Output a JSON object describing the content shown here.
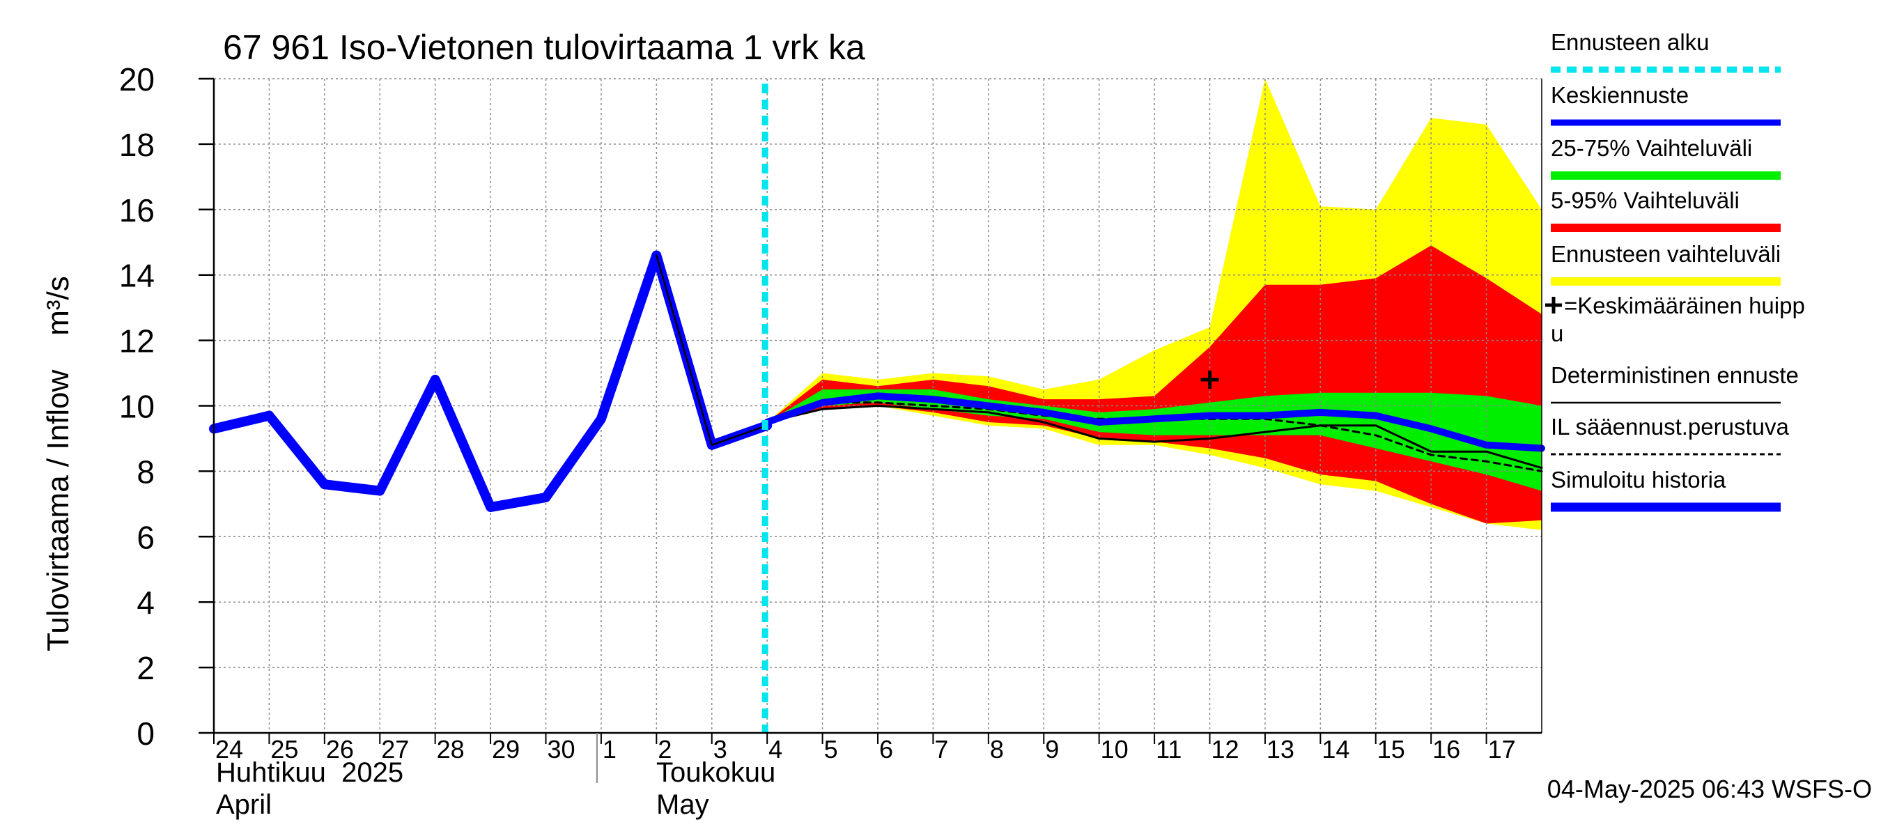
{
  "chart_data": {
    "type": "area",
    "title": "67 961 Iso-Vietonen tulovirtaama 1 vrk ka",
    "ylabel": "Tulovirtaama / Inflow    m³/s",
    "ylim": [
      0,
      20
    ],
    "yticks": [
      0,
      2,
      4,
      6,
      8,
      10,
      12,
      14,
      16,
      18,
      20
    ],
    "xlim": [
      0,
      24
    ],
    "day_labels": [
      "24",
      "25",
      "26",
      "27",
      "28",
      "29",
      "30",
      "1",
      "2",
      "3",
      "4",
      "5",
      "6",
      "7",
      "8",
      "9",
      "10",
      "11",
      "12",
      "13",
      "14",
      "15",
      "16",
      "17"
    ],
    "month_labels": {
      "april_fi": "Huhtikuu  2025",
      "april_en": "April",
      "may_fi": "Toukokuu",
      "may_en": "May"
    },
    "month_separator_x": 7,
    "forecast_start_x": 10,
    "footer": "04-May-2025 06:43 WSFS-O",
    "colors": {
      "cyan": "#00e5ee",
      "blue": "#0000ff",
      "green": "#00ee00",
      "red": "#ff0000",
      "yellow": "#ffff00",
      "black": "#000000",
      "grid": "#888888"
    },
    "forecast_x": [
      10,
      11,
      12,
      13,
      14,
      15,
      16,
      17,
      18,
      19,
      20,
      21,
      22,
      23,
      24
    ],
    "envelope_upper": [
      9.5,
      11.0,
      10.8,
      11.0,
      10.9,
      10.5,
      10.8,
      11.7,
      12.4,
      20.0,
      16.1,
      16.0,
      18.8,
      18.6,
      16.0
    ],
    "envelope_lower": [
      9.5,
      9.9,
      10.0,
      9.7,
      9.4,
      9.3,
      8.8,
      8.8,
      8.5,
      8.1,
      7.6,
      7.4,
      6.9,
      6.4,
      6.2
    ],
    "p95_upper": [
      9.5,
      10.8,
      10.6,
      10.8,
      10.6,
      10.2,
      10.2,
      10.3,
      11.8,
      13.7,
      13.7,
      13.9,
      14.9,
      13.9,
      12.8
    ],
    "p5_lower": [
      9.5,
      9.9,
      10.0,
      9.8,
      9.5,
      9.4,
      9.0,
      8.9,
      8.7,
      8.4,
      7.9,
      7.7,
      7.0,
      6.4,
      6.5
    ],
    "p75_upper": [
      9.5,
      10.5,
      10.5,
      10.5,
      10.2,
      10.0,
      9.8,
      9.9,
      10.1,
      10.3,
      10.4,
      10.4,
      10.4,
      10.3,
      10.0
    ],
    "p25_lower": [
      9.5,
      10.0,
      10.1,
      9.9,
      9.7,
      9.6,
      9.2,
      9.1,
      9.1,
      9.1,
      9.1,
      8.7,
      8.3,
      7.9,
      7.4
    ],
    "mean_forecast": [
      9.5,
      10.1,
      10.3,
      10.2,
      10.0,
      9.8,
      9.5,
      9.6,
      9.7,
      9.7,
      9.8,
      9.7,
      9.3,
      8.8,
      8.7
    ],
    "deterministic": [
      9.5,
      9.9,
      10.0,
      9.9,
      9.8,
      9.5,
      9.0,
      8.9,
      9.0,
      9.2,
      9.4,
      9.4,
      8.6,
      8.6,
      8.1
    ],
    "il_forecast": [
      9.5,
      10.1,
      10.1,
      10.0,
      9.9,
      9.7,
      9.6,
      9.6,
      9.6,
      9.6,
      9.4,
      9.1,
      8.5,
      8.3,
      8.0
    ],
    "history_x": [
      0,
      1,
      2,
      3,
      4,
      5,
      6,
      7,
      8,
      9,
      10
    ],
    "history_values": [
      9.3,
      9.7,
      7.6,
      7.4,
      10.8,
      6.9,
      7.2,
      9.6,
      14.6,
      8.8,
      9.4
    ],
    "history_black_x": [
      8,
      9,
      10
    ],
    "history_black_values": [
      14.6,
      8.8,
      9.4
    ],
    "mean_peak": {
      "x": 18,
      "y": 10.8
    },
    "legend": [
      {
        "label": "Ennusteen alku",
        "style": "cyan-dash"
      },
      {
        "label": "Keskiennuste",
        "style": "blue"
      },
      {
        "label": "25-75% Vaihteluväli",
        "style": "green"
      },
      {
        "label": "5-95% Vaihteluväli",
        "style": "red"
      },
      {
        "label": "Ennusteen vaihteluväli",
        "style": "yellow"
      },
      {
        "label": "=Keskimääräinen huipp",
        "label2": "u",
        "style": "plus"
      },
      {
        "label": "Deterministinen ennuste",
        "style": "black-thin"
      },
      {
        "label": "IL sääennust.perustuva",
        "style": "black-dash"
      },
      {
        "label": "Simuloitu historia",
        "style": "blue-thick"
      }
    ]
  }
}
